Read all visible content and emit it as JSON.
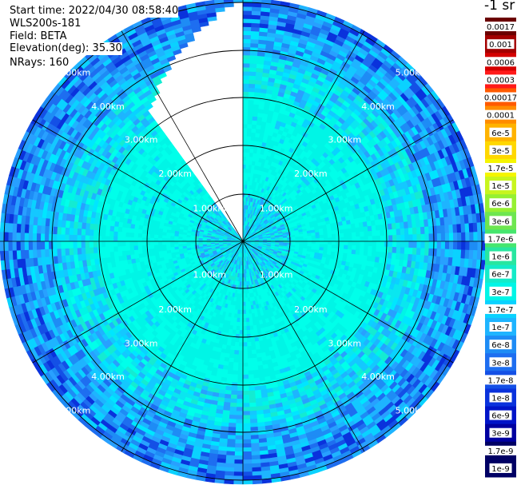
{
  "header": {
    "start_time": "Start time: 2022/04/30 08:58:40",
    "instrument": "WLS200s-181",
    "field": "Field: BETA",
    "elevation": "Elevation(deg): 35.30",
    "nrays": "NRays: 160"
  },
  "colorbar": {
    "unit_label": "-1 sr",
    "colors": [
      "#6b0000",
      "#a30000",
      "#d40000",
      "#ff1a1a",
      "#ff5a00",
      "#ff8c00",
      "#ffb300",
      "#ffd700",
      "#f5f500",
      "#c8f51e",
      "#96f032",
      "#6ee650",
      "#46e66e",
      "#28e6a0",
      "#14ebc8",
      "#00f5e6",
      "#0ad2ff",
      "#1eb4ff",
      "#1e8cf5",
      "#1e6ef0",
      "#1450e6",
      "#0a32dc",
      "#0014c8",
      "#0000a0",
      "#000064"
    ],
    "labels": [
      "0.0017",
      "0.001",
      "0.0006",
      "0.0003",
      "0.00017",
      "0.0001",
      "6e-5",
      "3e-5",
      "1.7e-5",
      "1e-5",
      "6e-6",
      "3e-6",
      "1.7e-6",
      "1e-6",
      "6e-7",
      "3e-7",
      "1.7e-7",
      "1e-7",
      "6e-8",
      "3e-8",
      "1.7e-8",
      "1e-8",
      "6e-9",
      "3e-9",
      "1.7e-9",
      "1e-9"
    ]
  },
  "chart_data": {
    "type": "heatmap",
    "projection": "polar PPI",
    "field": "BETA",
    "nrays": 160,
    "range_unit": "km",
    "max_range_km": 5.0,
    "range_rings_km": [
      1.0,
      2.0,
      3.0,
      4.0,
      5.0
    ],
    "ring_labels": [
      "1.00km",
      "2.00km",
      "3.00km",
      "4.00km",
      "5.00km"
    ],
    "spokes_deg": [
      0,
      30,
      60,
      90,
      120,
      150,
      180,
      210,
      240,
      270,
      300,
      330
    ],
    "missing_sector_deg": [
      325,
      360
    ],
    "beta_by_range_km": [
      {
        "range": [
          0.0,
          3.0
        ],
        "beta": 5e-07
      },
      {
        "range": [
          3.0,
          4.0
        ],
        "beta": 1.5e-07
      },
      {
        "range": [
          4.0,
          5.0
        ],
        "beta": 6e-08
      }
    ]
  }
}
